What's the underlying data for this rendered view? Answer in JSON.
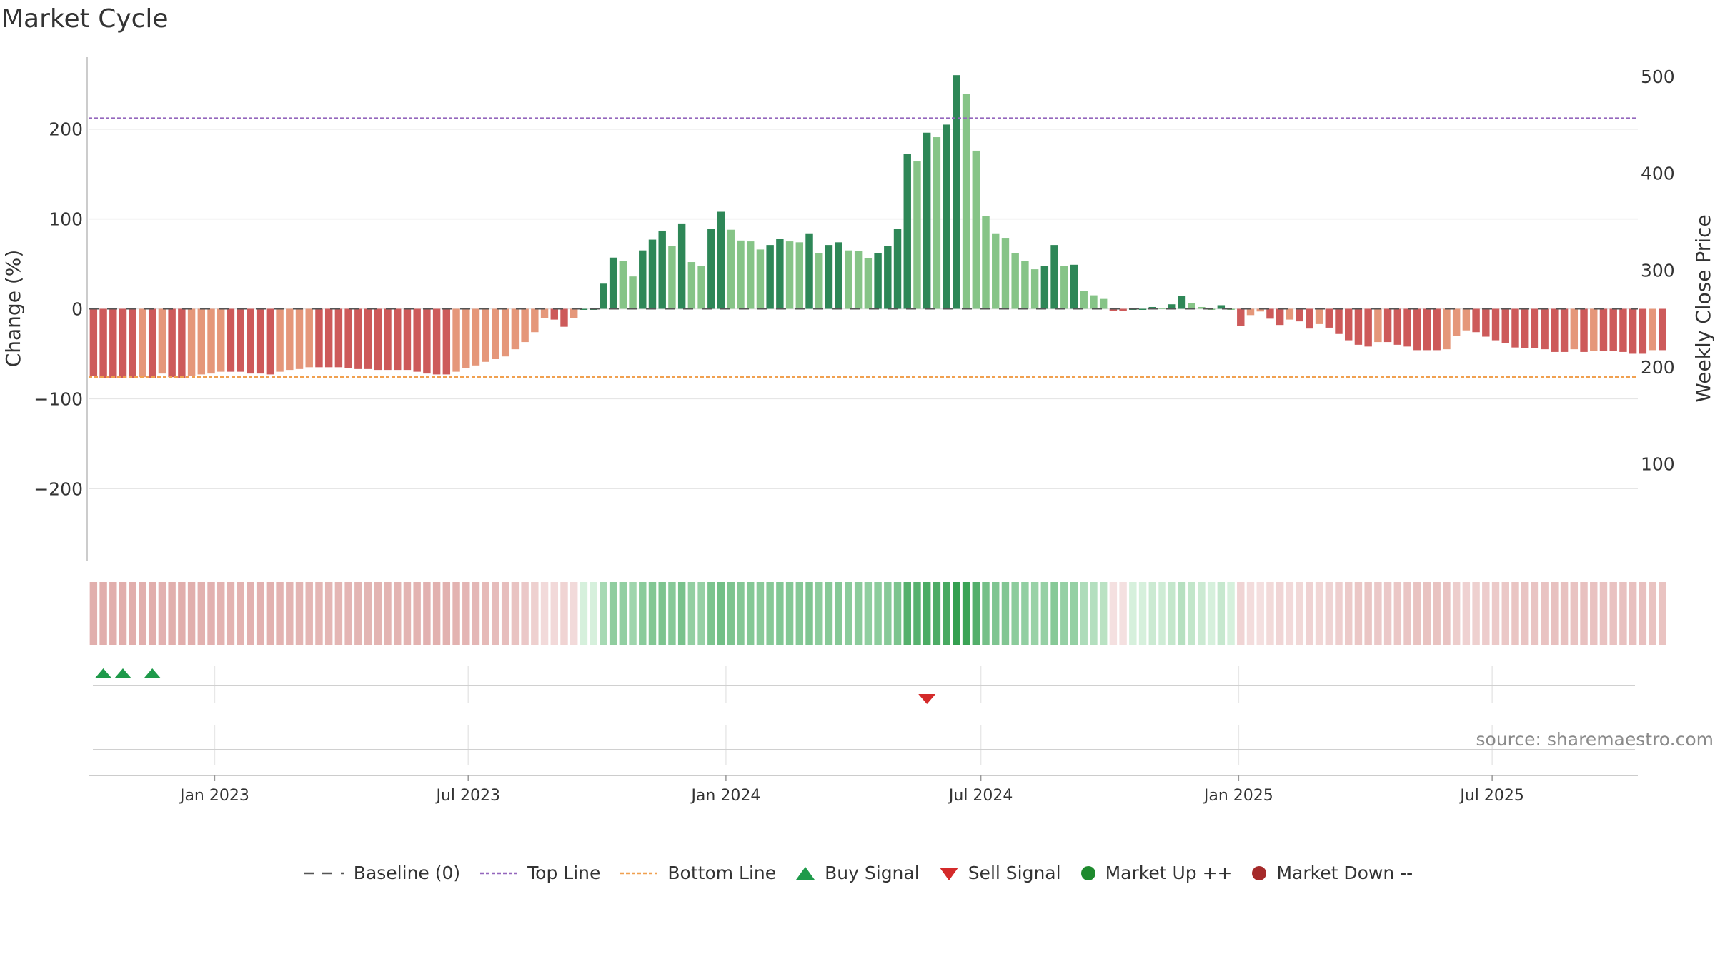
{
  "chart_data": {
    "type": "bar",
    "title": "Market Cycle",
    "ylabel": "Change (%)",
    "y2label": "Weekly Close Price",
    "ylim": [
      -280,
      280
    ],
    "y2lim": [
      0,
      520
    ],
    "yticks": [
      200,
      100,
      0,
      -100,
      -200
    ],
    "ytick_labels": [
      "200",
      "100",
      "0",
      "−100",
      "−200"
    ],
    "y2ticks": [
      500,
      400,
      300,
      200,
      100
    ],
    "y2tick_labels": [
      "500",
      "400",
      "300",
      "200",
      "100"
    ],
    "x_start": "2022-10-03",
    "x_end": "2025-10-13",
    "x_ticks": [
      {
        "date": "2023-01-01",
        "label": "Jan 2023"
      },
      {
        "date": "2023-07-01",
        "label": "Jul 2023"
      },
      {
        "date": "2024-01-01",
        "label": "Jan 2024"
      },
      {
        "date": "2024-07-01",
        "label": "Jul 2024"
      },
      {
        "date": "2025-01-01",
        "label": "Jan 2025"
      },
      {
        "date": "2025-07-01",
        "label": "Jul 2025"
      }
    ],
    "first_week": "2022-10-03",
    "values": [
      -75,
      -77,
      -77,
      -77,
      -77,
      -76,
      -77,
      -72,
      -76,
      -77,
      -75,
      -73,
      -72,
      -70,
      -70,
      -70,
      -72,
      -72,
      -73,
      -70,
      -68,
      -67,
      -65,
      -65,
      -65,
      -65,
      -66,
      -67,
      -67,
      -68,
      -68,
      -68,
      -68,
      -70,
      -72,
      -73,
      -73,
      -70,
      -66,
      -63,
      -59,
      -56,
      -53,
      -45,
      -37,
      -26,
      -10,
      -12,
      -20,
      -10,
      0,
      0,
      28,
      57,
      53,
      36,
      65,
      77,
      87,
      70,
      95,
      52,
      48,
      89,
      108,
      88,
      76,
      75,
      66,
      71,
      78,
      75,
      74,
      84,
      62,
      71,
      74,
      65,
      64,
      56,
      62,
      70,
      89,
      172,
      164,
      196,
      191,
      205,
      260,
      239,
      176,
      103,
      84,
      79,
      62,
      53,
      44,
      48,
      71,
      48,
      49,
      20,
      15,
      11,
      -2,
      -2,
      0,
      0,
      2,
      1,
      5,
      14,
      6,
      2,
      0,
      4,
      0,
      -19,
      -7,
      -3,
      -11,
      -18,
      -12,
      -14,
      -22,
      -17,
      -21,
      -28,
      -35,
      -40,
      -42,
      -37,
      -37,
      -40,
      -42,
      -46,
      -46,
      -46,
      -45,
      -30,
      -24,
      -26,
      -31,
      -35,
      -38,
      -43,
      -44,
      -44,
      -45,
      -48,
      -48,
      -45,
      -48,
      -47,
      -47,
      -47,
      -48,
      -50,
      -50,
      -46,
      -46
    ],
    "top_line": 212,
    "bottom_line": -76,
    "baseline": 0,
    "buy_signals": [
      "2022-10-10",
      "2022-10-24",
      "2022-11-14"
    ],
    "sell_signals": [
      "2024-05-20"
    ],
    "source": "source: sharemaestro.com",
    "legend": [
      "Baseline (0)",
      "Top Line",
      "Bottom Line",
      "Buy Signal",
      "Sell Signal",
      "Market Up ++",
      "Market Down --"
    ],
    "colors": {
      "up_dark": "#2e8757",
      "up_light": "#86c487",
      "down_dark": "#cd5a5a",
      "down_light": "#e5977a",
      "top_line": "#9467bd",
      "bottom_line": "#f0a050",
      "baseline": "#555555",
      "buy": "#1e9a4a",
      "sell": "#d42a2a",
      "market_up": "#1e8a2e",
      "market_down": "#a52a2a"
    }
  }
}
